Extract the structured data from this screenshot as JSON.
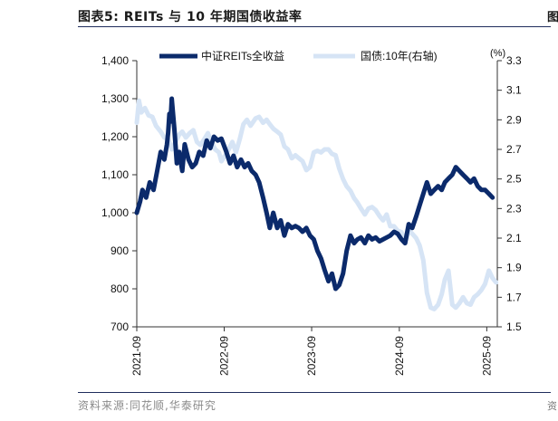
{
  "figure": {
    "title": "图表5:  REITs 与 10 年期国债收益率",
    "source": "资料来源:同花顺,华泰研究",
    "edge_mark": "图",
    "edge_mark_bottom": "资"
  },
  "chart_data": {
    "type": "line",
    "title": "图表5:  REITs 与 10 年期国债收益率",
    "xlabel": "",
    "ylabel_left": "",
    "ylabel_right": "(%)",
    "x_ticks": [
      "2021-09",
      "2022-09",
      "2023-09",
      "2024-09",
      "2025-09"
    ],
    "y_left": {
      "ticks": [
        "1,400",
        "1,300",
        "1,200",
        "1,100",
        "1,000",
        "900",
        "800",
        "700"
      ],
      "range": [
        700,
        1400
      ]
    },
    "y_right": {
      "ticks": [
        "3.3",
        "3.1",
        "2.9",
        "2.7",
        "2.5",
        "2.3",
        "2.1",
        "1.9",
        "1.7",
        "1.5"
      ],
      "range": [
        1.5,
        3.3
      ]
    },
    "x_range": [
      "2021-09-01",
      "2025-10-15"
    ],
    "legend_position": "top",
    "grid": false,
    "colors": {
      "reits": "#0b2a6b",
      "bond": "#d6e4f5",
      "axis": "#333333"
    },
    "series": [
      {
        "name": "中证REITs全收益",
        "axis": "left",
        "color": "#0b2a6b",
        "points": [
          [
            "2021-09-01",
            1000
          ],
          [
            "2021-09-15",
            1030
          ],
          [
            "2021-09-25",
            1060
          ],
          [
            "2021-10-10",
            1040
          ],
          [
            "2021-10-25",
            1080
          ],
          [
            "2021-11-10",
            1060
          ],
          [
            "2021-11-25",
            1110
          ],
          [
            "2021-12-10",
            1160
          ],
          [
            "2021-12-25",
            1140
          ],
          [
            "2022-01-05",
            1180
          ],
          [
            "2022-01-10",
            1210
          ],
          [
            "2022-01-15",
            1260
          ],
          [
            "2022-01-20",
            1240
          ],
          [
            "2022-01-25",
            1300
          ],
          [
            "2022-02-05",
            1220
          ],
          [
            "2022-02-15",
            1130
          ],
          [
            "2022-02-25",
            1160
          ],
          [
            "2022-03-10",
            1110
          ],
          [
            "2022-03-20",
            1180
          ],
          [
            "2022-04-05",
            1140
          ],
          [
            "2022-04-20",
            1120
          ],
          [
            "2022-05-05",
            1130
          ],
          [
            "2022-05-20",
            1160
          ],
          [
            "2022-06-05",
            1150
          ],
          [
            "2022-06-20",
            1190
          ],
          [
            "2022-07-05",
            1170
          ],
          [
            "2022-07-20",
            1200
          ],
          [
            "2022-08-05",
            1190
          ],
          [
            "2022-08-20",
            1195
          ],
          [
            "2022-09-10",
            1160
          ],
          [
            "2022-09-25",
            1130
          ],
          [
            "2022-10-10",
            1150
          ],
          [
            "2022-10-25",
            1120
          ],
          [
            "2022-11-10",
            1140
          ],
          [
            "2022-11-25",
            1120
          ],
          [
            "2022-12-10",
            1130
          ],
          [
            "2022-12-25",
            1110
          ],
          [
            "2023-01-10",
            1100
          ],
          [
            "2023-01-25",
            1080
          ],
          [
            "2023-02-10",
            1040
          ],
          [
            "2023-02-25",
            1000
          ],
          [
            "2023-03-10",
            960
          ],
          [
            "2023-03-25",
            1000
          ],
          [
            "2023-04-10",
            960
          ],
          [
            "2023-04-25",
            980
          ],
          [
            "2023-05-10",
            940
          ],
          [
            "2023-05-25",
            970
          ],
          [
            "2023-06-10",
            960
          ],
          [
            "2023-06-25",
            965
          ],
          [
            "2023-07-10",
            960
          ],
          [
            "2023-07-25",
            950
          ],
          [
            "2023-08-10",
            960
          ],
          [
            "2023-08-25",
            940
          ],
          [
            "2023-09-10",
            930
          ],
          [
            "2023-09-25",
            900
          ],
          [
            "2023-10-10",
            880
          ],
          [
            "2023-10-25",
            850
          ],
          [
            "2023-11-10",
            820
          ],
          [
            "2023-11-25",
            840
          ],
          [
            "2023-12-10",
            800
          ],
          [
            "2023-12-25",
            810
          ],
          [
            "2024-01-10",
            840
          ],
          [
            "2024-01-25",
            900
          ],
          [
            "2024-02-10",
            940
          ],
          [
            "2024-02-25",
            920
          ],
          [
            "2024-03-10",
            930
          ],
          [
            "2024-03-25",
            935
          ],
          [
            "2024-04-10",
            920
          ],
          [
            "2024-04-25",
            940
          ],
          [
            "2024-05-10",
            930
          ],
          [
            "2024-05-25",
            935
          ],
          [
            "2024-06-10",
            925
          ],
          [
            "2024-06-25",
            930
          ],
          [
            "2024-07-10",
            935
          ],
          [
            "2024-07-25",
            940
          ],
          [
            "2024-08-10",
            950
          ],
          [
            "2024-08-25",
            945
          ],
          [
            "2024-09-10",
            930
          ],
          [
            "2024-09-25",
            920
          ],
          [
            "2024-10-10",
            970
          ],
          [
            "2024-10-25",
            960
          ],
          [
            "2024-11-10",
            990
          ],
          [
            "2024-11-25",
            1020
          ],
          [
            "2024-12-10",
            1050
          ],
          [
            "2024-12-25",
            1080
          ],
          [
            "2025-01-10",
            1050
          ],
          [
            "2025-01-25",
            1060
          ],
          [
            "2025-02-10",
            1070
          ],
          [
            "2025-02-25",
            1060
          ],
          [
            "2025-03-10",
            1080
          ],
          [
            "2025-03-25",
            1090
          ],
          [
            "2025-04-10",
            1100
          ],
          [
            "2025-04-25",
            1120
          ],
          [
            "2025-05-10",
            1110
          ],
          [
            "2025-05-25",
            1100
          ],
          [
            "2025-06-10",
            1090
          ],
          [
            "2025-06-25",
            1080
          ],
          [
            "2025-07-10",
            1090
          ],
          [
            "2025-07-25",
            1070
          ],
          [
            "2025-08-10",
            1060
          ],
          [
            "2025-08-25",
            1060
          ],
          [
            "2025-09-10",
            1050
          ],
          [
            "2025-09-25",
            1040
          ]
        ]
      },
      {
        "name": "国债:10年(右轴)",
        "axis": "right",
        "color": "#d6e4f5",
        "points": [
          [
            "2021-09-01",
            2.88
          ],
          [
            "2021-09-10",
            3.03
          ],
          [
            "2021-09-20",
            2.95
          ],
          [
            "2021-10-05",
            2.98
          ],
          [
            "2021-10-20",
            2.93
          ],
          [
            "2021-11-05",
            2.92
          ],
          [
            "2021-11-20",
            2.86
          ],
          [
            "2021-12-10",
            2.82
          ],
          [
            "2021-12-25",
            2.78
          ],
          [
            "2022-01-10",
            2.77
          ],
          [
            "2022-01-25",
            2.7
          ],
          [
            "2022-02-10",
            2.75
          ],
          [
            "2022-02-25",
            2.8
          ],
          [
            "2022-03-10",
            2.82
          ],
          [
            "2022-03-25",
            2.78
          ],
          [
            "2022-04-10",
            2.81
          ],
          [
            "2022-04-25",
            2.83
          ],
          [
            "2022-05-10",
            2.75
          ],
          [
            "2022-05-25",
            2.73
          ],
          [
            "2022-06-10",
            2.77
          ],
          [
            "2022-06-25",
            2.81
          ],
          [
            "2022-07-10",
            2.75
          ],
          [
            "2022-07-25",
            2.7
          ],
          [
            "2022-08-10",
            2.68
          ],
          [
            "2022-08-20",
            2.62
          ],
          [
            "2022-09-05",
            2.66
          ],
          [
            "2022-09-20",
            2.7
          ],
          [
            "2022-10-05",
            2.75
          ],
          [
            "2022-10-20",
            2.68
          ],
          [
            "2022-11-05",
            2.77
          ],
          [
            "2022-11-20",
            2.87
          ],
          [
            "2022-12-05",
            2.9
          ],
          [
            "2022-12-20",
            2.86
          ],
          [
            "2023-01-10",
            2.91
          ],
          [
            "2023-01-25",
            2.92
          ],
          [
            "2023-02-10",
            2.88
          ],
          [
            "2023-02-25",
            2.9
          ],
          [
            "2023-03-10",
            2.87
          ],
          [
            "2023-03-25",
            2.84
          ],
          [
            "2023-04-10",
            2.82
          ],
          [
            "2023-04-25",
            2.8
          ],
          [
            "2023-05-10",
            2.72
          ],
          [
            "2023-05-25",
            2.7
          ],
          [
            "2023-06-10",
            2.64
          ],
          [
            "2023-06-25",
            2.66
          ],
          [
            "2023-07-10",
            2.64
          ],
          [
            "2023-07-25",
            2.62
          ],
          [
            "2023-08-10",
            2.56
          ],
          [
            "2023-08-25",
            2.58
          ],
          [
            "2023-09-10",
            2.68
          ],
          [
            "2023-09-25",
            2.69
          ],
          [
            "2023-10-10",
            2.68
          ],
          [
            "2023-10-25",
            2.7
          ],
          [
            "2023-11-10",
            2.7
          ],
          [
            "2023-11-25",
            2.67
          ],
          [
            "2023-12-10",
            2.66
          ],
          [
            "2023-12-25",
            2.57
          ],
          [
            "2024-01-10",
            2.5
          ],
          [
            "2024-01-25",
            2.45
          ],
          [
            "2024-02-10",
            2.42
          ],
          [
            "2024-02-25",
            2.37
          ],
          [
            "2024-03-10",
            2.34
          ],
          [
            "2024-03-25",
            2.3
          ],
          [
            "2024-04-10",
            2.26
          ],
          [
            "2024-04-25",
            2.3
          ],
          [
            "2024-05-10",
            2.31
          ],
          [
            "2024-05-25",
            2.29
          ],
          [
            "2024-06-10",
            2.25
          ],
          [
            "2024-06-25",
            2.22
          ],
          [
            "2024-07-10",
            2.26
          ],
          [
            "2024-07-25",
            2.18
          ],
          [
            "2024-08-10",
            2.18
          ],
          [
            "2024-08-25",
            2.15
          ],
          [
            "2024-09-10",
            2.14
          ],
          [
            "2024-09-25",
            2.07
          ],
          [
            "2024-10-10",
            2.15
          ],
          [
            "2024-10-25",
            2.13
          ],
          [
            "2024-11-10",
            2.1
          ],
          [
            "2024-11-25",
            2.05
          ],
          [
            "2024-12-10",
            1.95
          ],
          [
            "2024-12-25",
            1.73
          ],
          [
            "2025-01-10",
            1.63
          ],
          [
            "2025-01-25",
            1.62
          ],
          [
            "2025-02-10",
            1.65
          ],
          [
            "2025-02-25",
            1.72
          ],
          [
            "2025-03-10",
            1.82
          ],
          [
            "2025-03-25",
            1.88
          ],
          [
            "2025-04-10",
            1.65
          ],
          [
            "2025-04-25",
            1.63
          ],
          [
            "2025-05-10",
            1.66
          ],
          [
            "2025-05-25",
            1.7
          ],
          [
            "2025-06-10",
            1.66
          ],
          [
            "2025-06-25",
            1.65
          ],
          [
            "2025-07-10",
            1.7
          ],
          [
            "2025-07-25",
            1.72
          ],
          [
            "2025-08-10",
            1.75
          ],
          [
            "2025-08-25",
            1.79
          ],
          [
            "2025-09-10",
            1.88
          ],
          [
            "2025-09-25",
            1.83
          ],
          [
            "2025-10-10",
            1.8
          ]
        ]
      }
    ]
  }
}
